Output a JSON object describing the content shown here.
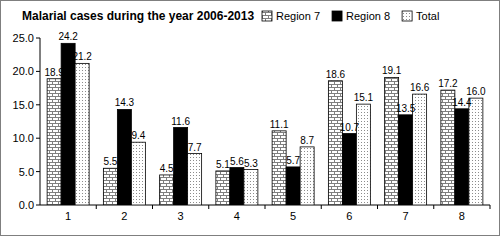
{
  "chart_data": {
    "type": "bar",
    "title": "Malarial cases during the year 2006-2013",
    "categories": [
      "1",
      "2",
      "3",
      "4",
      "5",
      "6",
      "7",
      "8"
    ],
    "series": [
      {
        "name": "Region 7",
        "color": "#bfbfbf",
        "values": [
          18.9,
          5.5,
          4.5,
          5.1,
          11.1,
          18.6,
          19.1,
          17.2
        ]
      },
      {
        "name": "Region 8",
        "color": "#000000",
        "values": [
          24.2,
          14.3,
          11.6,
          5.6,
          5.7,
          10.7,
          13.5,
          14.4
        ]
      },
      {
        "name": "Total",
        "color": "#ffffff",
        "values": [
          21.2,
          9.4,
          7.7,
          5.3,
          8.7,
          15.1,
          16.6,
          16.0
        ],
        "value_labels": [
          "21.2",
          "9.4",
          "7.7",
          "5.3",
          "8.7",
          "15.1",
          "16.6",
          "16.0"
        ]
      }
    ],
    "ylim": [
      0,
      25
    ],
    "yticks": [
      {
        "value": 0,
        "label": "0.0"
      },
      {
        "value": 5,
        "label": "5.0"
      },
      {
        "value": 10,
        "label": "10.0"
      },
      {
        "value": 15,
        "label": "15.0"
      },
      {
        "value": 20,
        "label": "20.0"
      },
      {
        "value": 25,
        "label": "25.0"
      }
    ],
    "grid": false,
    "legend": "top-right",
    "data_labels": true
  }
}
